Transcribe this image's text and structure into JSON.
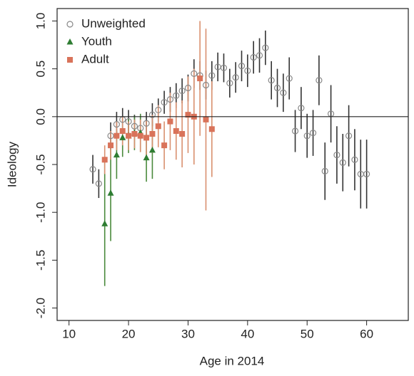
{
  "chart_data": {
    "type": "scatter",
    "xlabel": "Age in 2014",
    "ylabel": "Ideology",
    "xlim": [
      8,
      67
    ],
    "ylim": [
      -2.13,
      1.13
    ],
    "xticks": [
      10,
      20,
      30,
      40,
      50,
      60
    ],
    "yticks": [
      {
        "value": -2,
        "label": "-2.0"
      },
      -1.5,
      {
        "value": -1,
        "label": "-1.0"
      },
      -0.5,
      {
        "value": 0,
        "label": "0.0"
      },
      0.5,
      {
        "value": 1,
        "label": "1.0"
      }
    ],
    "hline": 0,
    "legend": "upper left",
    "series": [
      {
        "name": "Unweighted",
        "color": "#888888",
        "error_color": "#333333",
        "marker": "circle",
        "x": [
          14,
          15,
          17,
          18,
          19,
          20,
          21,
          22,
          23,
          24,
          25,
          26,
          27,
          28,
          29,
          30,
          31,
          32,
          33,
          34,
          35,
          36,
          37,
          38,
          39,
          40,
          41,
          42,
          43,
          44,
          45,
          46,
          47,
          48,
          49,
          50,
          51,
          52,
          53,
          54,
          55,
          56,
          57,
          58,
          59,
          60
        ],
        "values": [
          -0.55,
          -0.7,
          -0.2,
          -0.08,
          -0.03,
          -0.05,
          -0.1,
          -0.12,
          -0.07,
          0.02,
          0.07,
          0.15,
          0.18,
          0.22,
          0.27,
          0.3,
          0.45,
          0.43,
          0.33,
          0.43,
          0.52,
          0.51,
          0.35,
          0.41,
          0.53,
          0.48,
          0.62,
          0.64,
          0.72,
          0.38,
          0.3,
          0.25,
          0.4,
          -0.15,
          0.09,
          -0.2,
          -0.17,
          0.38,
          -0.57,
          0.03,
          -0.4,
          -0.48,
          -0.2,
          -0.45,
          -0.6,
          -0.6
        ],
        "errors": [
          0.15,
          0.15,
          0.14,
          0.13,
          0.12,
          0.12,
          0.12,
          0.12,
          0.12,
          0.12,
          0.12,
          0.12,
          0.13,
          0.13,
          0.13,
          0.14,
          0.15,
          0.15,
          0.15,
          0.15,
          0.15,
          0.15,
          0.15,
          0.16,
          0.16,
          0.17,
          0.17,
          0.18,
          0.18,
          0.2,
          0.2,
          0.2,
          0.22,
          0.22,
          0.22,
          0.23,
          0.24,
          0.26,
          0.3,
          0.3,
          0.3,
          0.3,
          0.32,
          0.32,
          0.36,
          0.36
        ]
      },
      {
        "name": "Youth",
        "color": "#2e7d32",
        "error_color": "#4a8a3c",
        "marker": "triangle",
        "x": [
          16,
          17,
          18,
          19,
          20,
          21,
          22,
          23,
          24
        ],
        "values": [
          -1.12,
          -0.8,
          -0.4,
          -0.22,
          -0.2,
          -0.17,
          -0.17,
          -0.43,
          -0.35
        ],
        "errors": [
          0.65,
          0.5,
          0.25,
          0.2,
          0.18,
          0.18,
          0.2,
          0.25,
          0.3
        ]
      },
      {
        "name": "Adult",
        "color": "#d9735a",
        "error_color": "#d9906f",
        "marker": "square",
        "x": [
          16,
          17,
          18,
          19,
          20,
          21,
          22,
          23,
          24,
          25,
          26,
          27,
          28,
          29,
          30,
          31,
          32,
          33,
          34
        ],
        "values": [
          -0.45,
          -0.3,
          -0.2,
          -0.15,
          -0.2,
          -0.18,
          -0.2,
          -0.22,
          -0.18,
          -0.1,
          -0.3,
          -0.05,
          -0.15,
          -0.18,
          0.02,
          0.0,
          0.4,
          -0.03,
          -0.13
        ],
        "errors": [
          0.15,
          0.15,
          0.15,
          0.15,
          0.15,
          0.15,
          0.17,
          0.18,
          0.2,
          0.22,
          0.25,
          0.3,
          0.3,
          0.35,
          0.4,
          0.5,
          0.6,
          0.95,
          0.5
        ]
      }
    ]
  }
}
